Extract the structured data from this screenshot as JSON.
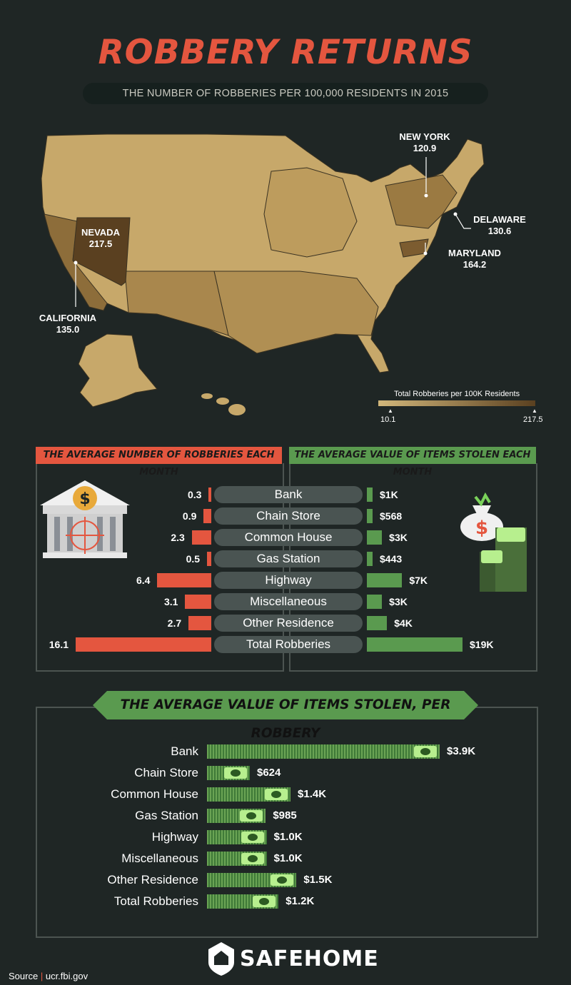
{
  "title": "ROBBERY RETURNS",
  "subtitle": "THE NUMBER OF ROBBERIES PER 100,000 RESIDENTS IN 2015",
  "map": {
    "callouts": [
      {
        "state": "NEW YORK",
        "value": "120.9"
      },
      {
        "state": "DELAWARE",
        "value": "130.6"
      },
      {
        "state": "MARYLAND",
        "value": "164.2"
      },
      {
        "state": "NEVADA",
        "value": "217.5"
      },
      {
        "state": "CALIFORNIA",
        "value": "135.0"
      }
    ],
    "legend": {
      "title": "Total Robberies per 100K Residents",
      "min": "10.1",
      "max": "217.5",
      "color_low": "#d2b77b",
      "color_high": "#5a4020"
    }
  },
  "panel1": {
    "header": "THE AVERAGE NUMBER OF ROBBERIES EACH MONTH",
    "color": "#e4563f"
  },
  "panel2": {
    "header": "THE AVERAGE VALUE OF ITEMS STOLEN EACH MONTH",
    "color": "#5a9a4f"
  },
  "panel3": {
    "header": "THE AVERAGE VALUE OF ITEMS STOLEN, PER ROBBERY"
  },
  "icons": {
    "bank": "bank-icon",
    "money_bag": "money-bag-icon",
    "cash_stack": "cash-stack-icon",
    "bill": "dollar-bill-icon",
    "logo": "safehome-shield-icon"
  },
  "chart_data": [
    {
      "type": "bar",
      "title": "THE AVERAGE NUMBER OF ROBBERIES EACH MONTH",
      "categories": [
        "Bank",
        "Chain Store",
        "Common House",
        "Gas Station",
        "Highway",
        "Miscellaneous",
        "Other Residence",
        "Total Robberies"
      ],
      "values": [
        0.3,
        0.9,
        2.3,
        0.5,
        6.4,
        3.1,
        2.7,
        16.1
      ],
      "labels": [
        "0.3",
        "0.9",
        "2.3",
        "0.5",
        "6.4",
        "3.1",
        "2.7",
        "16.1"
      ],
      "orientation": "horizontal",
      "direction": "leftward"
    },
    {
      "type": "bar",
      "title": "THE AVERAGE VALUE OF ITEMS STOLEN EACH MONTH",
      "categories": [
        "Bank",
        "Chain Store",
        "Common House",
        "Gas Station",
        "Highway",
        "Miscellaneous",
        "Other Residence",
        "Total Robberies"
      ],
      "values": [
        1000,
        568,
        3000,
        443,
        7000,
        3000,
        4000,
        19000
      ],
      "labels": [
        "$1K",
        "$568",
        "$3K",
        "$443",
        "$7K",
        "$3K",
        "$4K",
        "$19K"
      ],
      "orientation": "horizontal",
      "direction": "rightward"
    },
    {
      "type": "bar",
      "title": "THE AVERAGE VALUE OF ITEMS STOLEN, PER ROBBERY",
      "categories": [
        "Bank",
        "Chain Store",
        "Common House",
        "Gas Station",
        "Highway",
        "Miscellaneous",
        "Other Residence",
        "Total Robberies"
      ],
      "values": [
        3900,
        624,
        1400,
        985,
        1000,
        1000,
        1500,
        1200
      ],
      "labels": [
        "$3.9K",
        "$624",
        "$1.4K",
        "$985",
        "$1.0K",
        "$1.0K",
        "$1.5K",
        "$1.2K"
      ],
      "orientation": "horizontal"
    }
  ],
  "brand": "SAFEHOME",
  "source": {
    "label": "Source",
    "separator": "|",
    "text": "ucr.fbi.gov"
  }
}
